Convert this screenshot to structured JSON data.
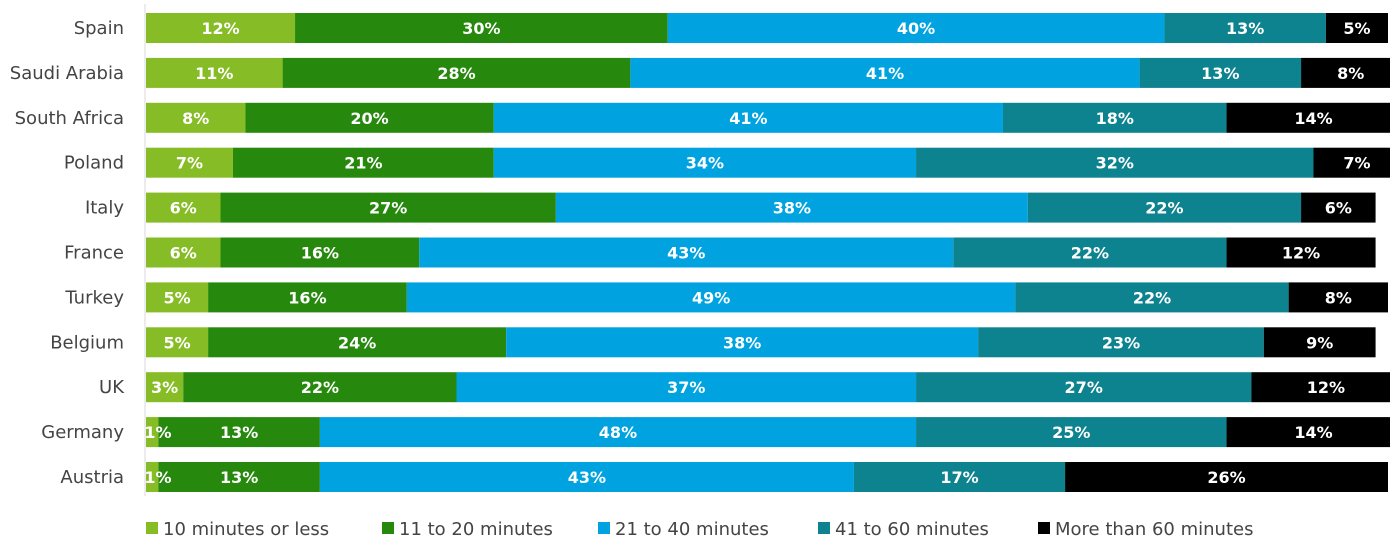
{
  "chart_data": {
    "type": "bar",
    "orientation": "horizontal",
    "stacked": true,
    "percent": true,
    "categories": [
      "Spain",
      "Saudi Arabia",
      "South Africa",
      "Poland",
      "Italy",
      "France",
      "Turkey",
      "Belgium",
      "UK",
      "Germany",
      "Austria"
    ],
    "series": [
      {
        "name": "10 minutes or less",
        "color": "#86bc25",
        "values": [
          12,
          11,
          8,
          7,
          6,
          6,
          5,
          5,
          3,
          1,
          1
        ]
      },
      {
        "name": "11 to 20 minutes",
        "color": "#26890d",
        "values": [
          30,
          28,
          20,
          21,
          27,
          16,
          16,
          24,
          22,
          13,
          13
        ]
      },
      {
        "name": "21 to 40 minutes",
        "color": "#00a3e0",
        "values": [
          40,
          41,
          41,
          34,
          38,
          43,
          49,
          38,
          37,
          48,
          43
        ]
      },
      {
        "name": "41 to 60 minutes",
        "color": "#0d8390",
        "values": [
          13,
          13,
          18,
          32,
          22,
          22,
          22,
          23,
          27,
          25,
          17
        ]
      },
      {
        "name": "More than 60 minutes",
        "color": "#000000",
        "values": [
          5,
          8,
          14,
          7,
          6,
          12,
          8,
          9,
          12,
          14,
          26
        ]
      }
    ],
    "value_suffix": "%",
    "xlim": [
      0,
      100
    ],
    "title": "",
    "xlabel": "",
    "ylabel": "",
    "grid": false,
    "legend_position": "bottom"
  }
}
